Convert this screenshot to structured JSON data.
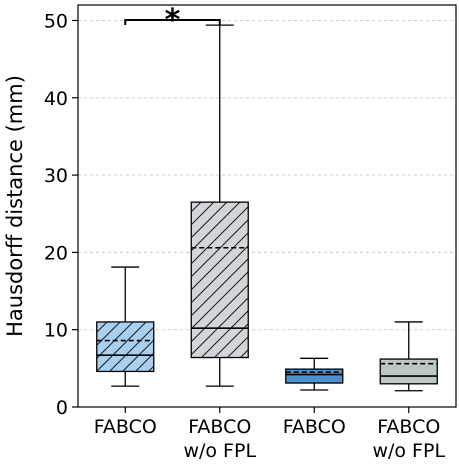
{
  "chart_data": {
    "type": "box",
    "ylabel": "Hausdorff distance (mm)",
    "xlabel": "",
    "ylim": [
      0,
      52
    ],
    "yticks": [
      0,
      10,
      20,
      30,
      40,
      50
    ],
    "grid": "horizontal dashed",
    "categories": [
      {
        "line1": "FABCO",
        "line2": ""
      },
      {
        "line1": "FABCO",
        "line2": "w/o FPL"
      },
      {
        "line1": "FABCO",
        "line2": ""
      },
      {
        "line1": "FABCO",
        "line2": "w/o FPL"
      }
    ],
    "boxes": [
      {
        "whisker_low": 2.7,
        "q1": 4.6,
        "median": 6.7,
        "mean": 8.6,
        "q3": 11.0,
        "whisker_high": 18.1,
        "fill": "#a9d0ef",
        "hatch": true
      },
      {
        "whisker_low": 2.7,
        "q1": 6.4,
        "median": 10.2,
        "mean": 20.6,
        "q3": 26.5,
        "whisker_high": 49.4,
        "fill": "#d3d6d9",
        "hatch": true
      },
      {
        "whisker_low": 2.2,
        "q1": 3.1,
        "median": 4.2,
        "mean": 4.5,
        "q3": 4.9,
        "whisker_high": 6.3,
        "fill": "#4f90cf",
        "hatch": false
      },
      {
        "whisker_low": 2.1,
        "q1": 3.0,
        "median": 4.0,
        "mean": 5.6,
        "q3": 6.2,
        "whisker_high": 11.0,
        "fill": "#bcc6c4",
        "hatch": false
      }
    ],
    "annotations": [
      {
        "text": "*",
        "from": 0,
        "to": 1
      }
    ]
  }
}
